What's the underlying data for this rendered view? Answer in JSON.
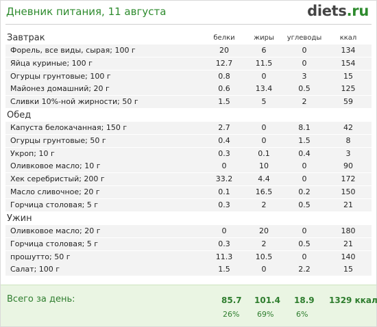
{
  "header": {
    "title": "Дневник питания, 11 августа",
    "logo_part1": "diets",
    "logo_part2": ".ru"
  },
  "columns": {
    "protein": "белки",
    "fat": "жиры",
    "carbs": "углеводы",
    "kcal": "ккал"
  },
  "meals": [
    {
      "title": "Завтрак",
      "items": [
        {
          "name": "Форель, все виды, сырая; 100 г",
          "protein": "20",
          "fat": "6",
          "carbs": "0",
          "kcal": "134"
        },
        {
          "name": "Яйца куриные; 100 г",
          "protein": "12.7",
          "fat": "11.5",
          "carbs": "0",
          "kcal": "154"
        },
        {
          "name": "Огурцы грунтовые; 100 г",
          "protein": "0.8",
          "fat": "0",
          "carbs": "3",
          "kcal": "15"
        },
        {
          "name": "Майонез домашний; 20 г",
          "protein": "0.6",
          "fat": "13.4",
          "carbs": "0.5",
          "kcal": "125"
        },
        {
          "name": "Сливки 10%-ной жирности; 50 г",
          "protein": "1.5",
          "fat": "5",
          "carbs": "2",
          "kcal": "59"
        }
      ]
    },
    {
      "title": "Обед",
      "items": [
        {
          "name": "Капуста белокачанная; 150 г",
          "protein": "2.7",
          "fat": "0",
          "carbs": "8.1",
          "kcal": "42"
        },
        {
          "name": "Огурцы грунтовые; 50 г",
          "protein": "0.4",
          "fat": "0",
          "carbs": "1.5",
          "kcal": "8"
        },
        {
          "name": "Укроп; 10 г",
          "protein": "0.3",
          "fat": "0.1",
          "carbs": "0.4",
          "kcal": "3"
        },
        {
          "name": "Оливковое масло; 10 г",
          "protein": "0",
          "fat": "10",
          "carbs": "0",
          "kcal": "90"
        },
        {
          "name": "Хек серебристый; 200 г",
          "protein": "33.2",
          "fat": "4.4",
          "carbs": "0",
          "kcal": "172"
        },
        {
          "name": "Масло сливочное; 20 г",
          "protein": "0.1",
          "fat": "16.5",
          "carbs": "0.2",
          "kcal": "150"
        },
        {
          "name": "Горчица столовая; 5 г",
          "protein": "0.3",
          "fat": "2",
          "carbs": "0.5",
          "kcal": "21"
        }
      ]
    },
    {
      "title": "Ужин",
      "items": [
        {
          "name": "Оливковое масло; 20 г",
          "protein": "0",
          "fat": "20",
          "carbs": "0",
          "kcal": "180"
        },
        {
          "name": "Горчица столовая; 5 г",
          "protein": "0.3",
          "fat": "2",
          "carbs": "0.5",
          "kcal": "21"
        },
        {
          "name": "прошутто; 50 г",
          "protein": "11.3",
          "fat": "10.5",
          "carbs": "0",
          "kcal": "140"
        },
        {
          "name": "Салат; 100 г",
          "protein": "1.5",
          "fat": "0",
          "carbs": "2.2",
          "kcal": "15"
        }
      ]
    }
  ],
  "totals": {
    "label": "Всего за день:",
    "protein": "85.7",
    "fat": "101.4",
    "carbs": "18.9",
    "kcal": "1329 ккал",
    "protein_pct": "26%",
    "fat_pct": "69%",
    "carbs_pct": "6%"
  },
  "colors": {
    "accent": "#2e8b2e",
    "row_bg": "#f3f3f3",
    "totals_bg": "#eaf5e3"
  }
}
